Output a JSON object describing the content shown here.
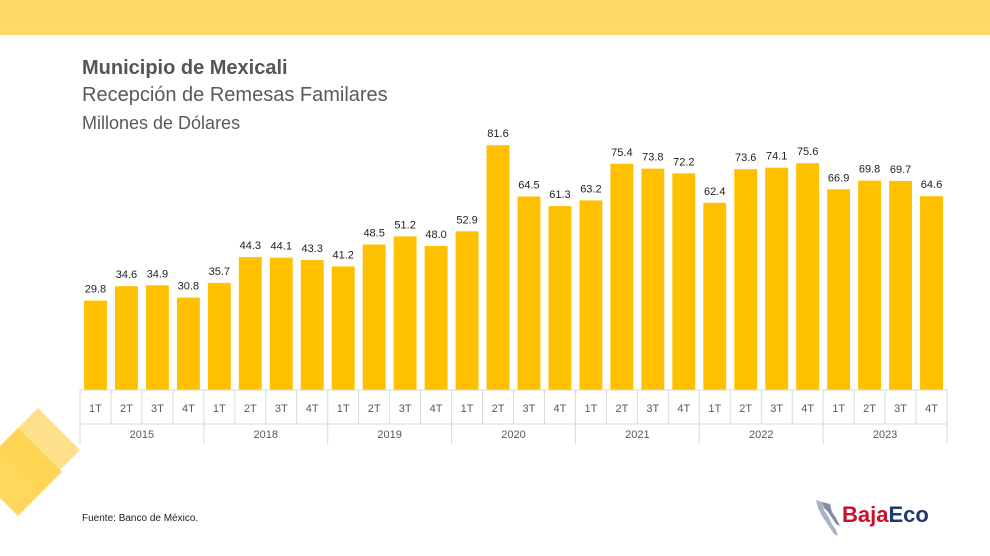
{
  "header": {
    "title": "Municipio de Mexicali",
    "subtitle": "Recepción de Remesas Familares",
    "unit": "Millones de Dólares"
  },
  "footer": {
    "source": "Fuente: Banco de México.",
    "logo": {
      "part1": "Baja",
      "part2": "Eco"
    }
  },
  "colors": {
    "bar": "#FFC000",
    "band": "#FFD966",
    "axis_text": "#595959",
    "grid": "#D9D9D9"
  },
  "chart_data": {
    "type": "bar",
    "title": "Municipio de Mexicali",
    "ylabel": "Millones de Dólares",
    "ylim": [
      0,
      90
    ],
    "grid": false,
    "categories": [
      "1T",
      "2T",
      "3T",
      "4T",
      "1T",
      "2T",
      "3T",
      "4T",
      "1T",
      "2T",
      "3T",
      "4T",
      "1T",
      "2T",
      "3T",
      "4T",
      "1T",
      "2T",
      "3T",
      "4T",
      "1T",
      "2T",
      "3T",
      "4T",
      "1T",
      "2T",
      "3T",
      "4T"
    ],
    "groups": [
      {
        "label": "2015",
        "count": 4
      },
      {
        "label": "2018",
        "count": 4
      },
      {
        "label": "2019",
        "count": 4
      },
      {
        "label": "2020",
        "count": 4
      },
      {
        "label": "2021",
        "count": 4
      },
      {
        "label": "2022",
        "count": 4
      },
      {
        "label": "2023",
        "count": 4
      }
    ],
    "values": [
      29.8,
      34.6,
      34.9,
      30.8,
      35.7,
      44.3,
      44.1,
      43.3,
      41.2,
      48.5,
      51.2,
      48.0,
      52.9,
      81.6,
      64.5,
      61.3,
      63.2,
      75.4,
      73.8,
      72.2,
      62.4,
      73.6,
      74.1,
      75.6,
      66.9,
      69.8,
      69.7,
      64.6
    ],
    "value_labels": [
      "29.8",
      "34.6",
      "34.9",
      "30.8",
      "35.7",
      "44.3",
      "44.1",
      "43.3",
      "41.2",
      "48.5",
      "51.2",
      "48.0",
      "52.9",
      "81.6",
      "64.5",
      "61.3",
      "63.2",
      "75.4",
      "73.8",
      "72.2",
      "62.4",
      "73.6",
      "74.1",
      "75.6",
      "66.9",
      "69.8",
      "69.7",
      "64.6"
    ]
  }
}
